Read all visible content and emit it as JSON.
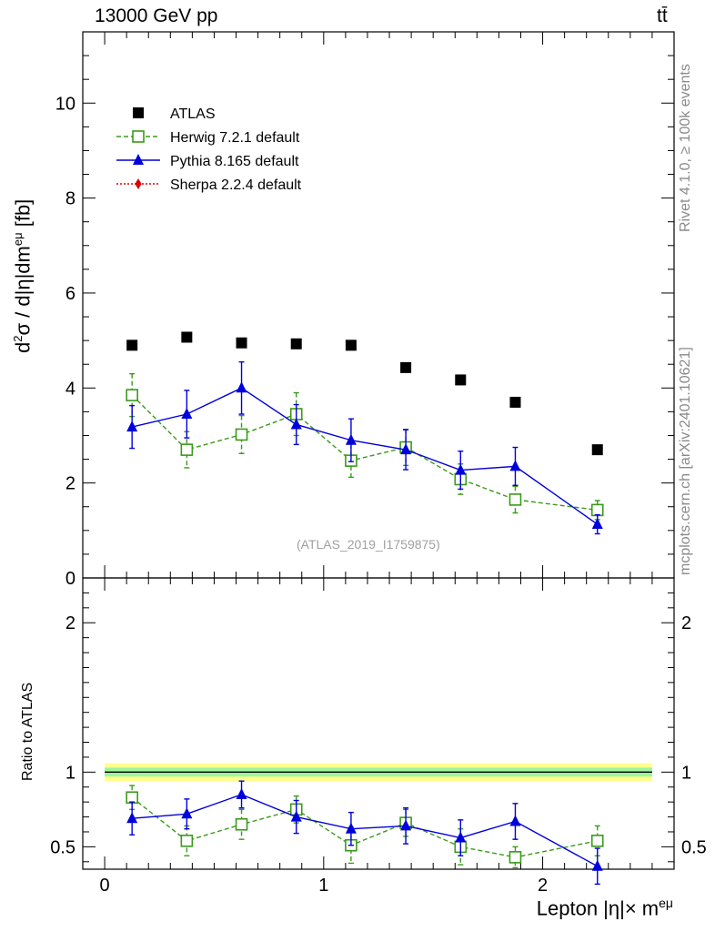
{
  "header": {
    "energy_label": "13000 GeV pp",
    "process_label": "tt̄"
  },
  "side_labels": {
    "rivet": "Rivet 4.1.0, ≥ 100k events",
    "mcplots": "mcplots.cern.ch [arXiv:2401.10621]"
  },
  "watermark": "(ATLAS_2019_I1759875)",
  "chart_data": [
    {
      "type": "scatter",
      "panel": "main",
      "ylabel": "d²σ / d|η|dm^eμ [fb]",
      "xlim": [
        -0.1,
        2.6
      ],
      "ylim": [
        0,
        11.5
      ],
      "yticks": [
        0,
        2,
        4,
        6,
        8,
        10
      ],
      "x": [
        0.125,
        0.375,
        0.625,
        0.875,
        1.125,
        1.375,
        1.625,
        1.875,
        2.25
      ],
      "series": [
        {
          "name": "ATLAS",
          "color": "#000000",
          "marker": "square-filled",
          "values": [
            4.9,
            5.07,
            4.95,
            4.93,
            4.9,
            4.43,
            4.17,
            3.7,
            2.7
          ]
        },
        {
          "name": "Herwig 7.2.1 default",
          "color": "#3a9a1a",
          "marker": "square-open",
          "line": "dashed",
          "values": [
            3.85,
            2.7,
            3.02,
            3.45,
            2.47,
            2.75,
            2.08,
            1.65,
            1.43
          ],
          "errors": [
            0.45,
            0.38,
            0.4,
            0.45,
            0.35,
            0.38,
            0.32,
            0.28,
            0.2
          ]
        },
        {
          "name": "Pythia 8.165 default",
          "color": "#0000dd",
          "marker": "triangle-up-filled",
          "line": "solid",
          "values": [
            3.18,
            3.45,
            4.0,
            3.23,
            2.9,
            2.7,
            2.27,
            2.35,
            1.13
          ],
          "errors": [
            0.45,
            0.5,
            0.55,
            0.42,
            0.45,
            0.42,
            0.4,
            0.4,
            0.2
          ]
        },
        {
          "name": "Sherpa 2.2.4 default",
          "color": "#dd0000",
          "marker": "diamond-filled",
          "line": "dotted",
          "values": []
        }
      ]
    },
    {
      "type": "scatter",
      "panel": "ratio",
      "ylabel": "Ratio to ATLAS",
      "xlabel": "Lepton |η|× m^eμ",
      "xlim": [
        -0.1,
        2.6
      ],
      "ylim": [
        0.35,
        2.3
      ],
      "yticks": [
        0.5,
        1,
        2
      ],
      "xticks": [
        0,
        1,
        2
      ],
      "band_inner": [
        0.97,
        1.03
      ],
      "band_outer": [
        0.94,
        1.06
      ],
      "x": [
        0.125,
        0.375,
        0.625,
        0.875,
        1.125,
        1.375,
        1.625,
        1.875,
        2.25
      ],
      "series": [
        {
          "name": "Herwig 7.2.1 default",
          "color": "#3a9a1a",
          "marker": "square-open",
          "line": "dashed",
          "values": [
            0.83,
            0.54,
            0.65,
            0.75,
            0.51,
            0.66,
            0.5,
            0.43,
            0.54
          ],
          "errors": [
            0.08,
            0.1,
            0.1,
            0.09,
            0.12,
            0.09,
            0.12,
            0.07,
            0.1
          ]
        },
        {
          "name": "Pythia 8.165 default",
          "color": "#0000dd",
          "marker": "triangle-up-filled",
          "line": "solid",
          "values": [
            0.69,
            0.72,
            0.85,
            0.7,
            0.62,
            0.64,
            0.56,
            0.67,
            0.37
          ],
          "errors": [
            0.11,
            0.1,
            0.09,
            0.11,
            0.11,
            0.12,
            0.12,
            0.12,
            0.12
          ]
        }
      ]
    }
  ]
}
